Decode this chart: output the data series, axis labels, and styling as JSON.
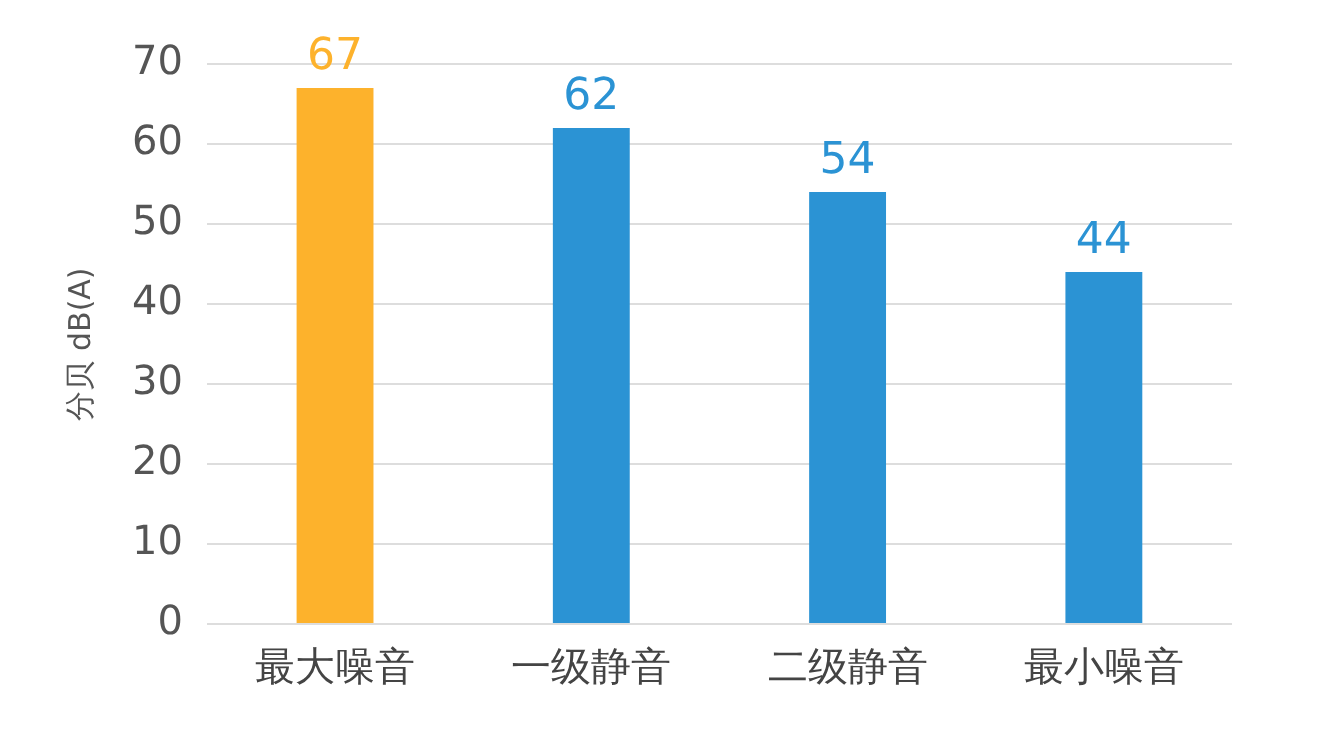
{
  "chart_data": {
    "type": "bar",
    "ylabel": "分贝 dB(A)",
    "categories": [
      "最大噪音",
      "一级静音",
      "二级静音",
      "最小噪音"
    ],
    "values": [
      67,
      62,
      54,
      44
    ],
    "colors": [
      "#fdb22c",
      "#2b93d4",
      "#2b93d4",
      "#2b93d4"
    ],
    "ylim": [
      0,
      70
    ],
    "yticks": [
      0,
      10,
      20,
      30,
      40,
      50,
      60,
      70
    ],
    "grid": "y",
    "data_labels": true,
    "legend": false
  }
}
